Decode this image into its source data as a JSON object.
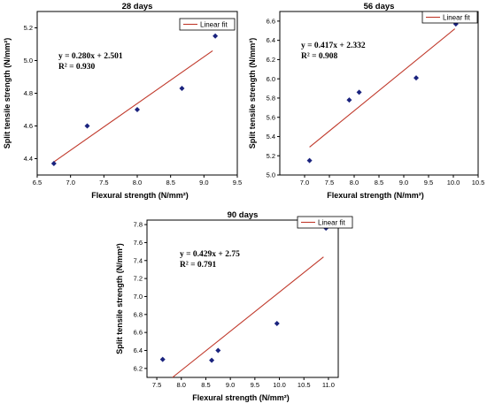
{
  "chart_data": [
    {
      "type": "scatter",
      "title": "28 days",
      "xlabel": "Flexural strength (N/mm²)",
      "ylabel": "Split tensile strength (N/mm²)",
      "xlim": [
        6.5,
        9.5
      ],
      "ylim": [
        4.3,
        5.3
      ],
      "xticks": [
        "6.5",
        "7.0",
        "7.5",
        "8.0",
        "8.5",
        "9.0",
        "9.5"
      ],
      "yticks": [
        "4.4",
        "4.6",
        "4.8",
        "5.0",
        "5.2"
      ],
      "points": [
        {
          "x": 6.75,
          "y": 4.37
        },
        {
          "x": 7.25,
          "y": 4.6
        },
        {
          "x": 8.0,
          "y": 4.7
        },
        {
          "x": 8.67,
          "y": 4.83
        },
        {
          "x": 9.17,
          "y": 5.15
        }
      ],
      "fit": {
        "x": [
          6.75,
          9.13
        ],
        "y": [
          4.38,
          5.06
        ]
      },
      "equation": "y = 0.280x + 2.501",
      "r2": "R² = 0.930",
      "legend": "Linear fit"
    },
    {
      "type": "scatter",
      "title": "56 days",
      "xlabel": "Flexural strength (N/mm²)",
      "ylabel": "Split tensile strength (N/mm²)",
      "xlim": [
        6.5,
        10.5
      ],
      "ylim": [
        5.0,
        6.7
      ],
      "xticks": [
        "7.0",
        "7.5",
        "8.0",
        "8.5",
        "9.0",
        "9.5",
        "10.0",
        "10.5"
      ],
      "yticks": [
        "5.0",
        "5.2",
        "5.4",
        "5.6",
        "5.8",
        "6.0",
        "6.2",
        "6.4",
        "6.6"
      ],
      "points": [
        {
          "x": 7.1,
          "y": 5.15
        },
        {
          "x": 7.9,
          "y": 5.78
        },
        {
          "x": 8.1,
          "y": 5.86
        },
        {
          "x": 9.25,
          "y": 6.01
        },
        {
          "x": 10.05,
          "y": 6.57
        }
      ],
      "fit": {
        "x": [
          7.1,
          10.03
        ],
        "y": [
          5.29,
          6.52
        ]
      },
      "equation": "y = 0.417x + 2.332",
      "r2": "R² = 0.908",
      "legend": "Linear fit"
    },
    {
      "type": "scatter",
      "title": "90 days",
      "xlabel": "Flexural strength (N/mm²)",
      "ylabel": "Split tensile strength (N/mm²)",
      "xlim": [
        7.3,
        11.2
      ],
      "ylim": [
        6.1,
        7.85
      ],
      "xticks": [
        "7.5",
        "8.0",
        "8.5",
        "9.0",
        "9.5",
        "10.0",
        "10.5",
        "11.0"
      ],
      "yticks": [
        "6.2",
        "6.4",
        "6.6",
        "6.8",
        "7.0",
        "7.2",
        "7.4",
        "7.6",
        "7.8"
      ],
      "points": [
        {
          "x": 7.62,
          "y": 6.3
        },
        {
          "x": 8.62,
          "y": 6.29
        },
        {
          "x": 8.75,
          "y": 6.4
        },
        {
          "x": 9.95,
          "y": 6.7
        },
        {
          "x": 10.95,
          "y": 7.76
        }
      ],
      "fit": {
        "x": [
          7.82,
          10.9
        ],
        "y": [
          6.1,
          7.44
        ]
      },
      "equation": "y = 0.429x + 2.75",
      "r2": "R² = 0.791",
      "legend": "Linear fit"
    }
  ]
}
